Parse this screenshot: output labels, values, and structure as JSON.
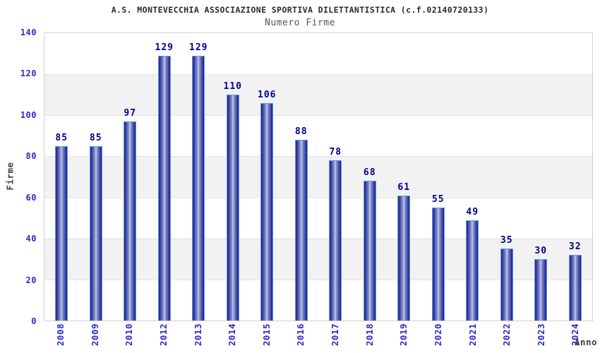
{
  "chart_data": {
    "type": "bar",
    "title": "A.S. MONTEVECCHIA ASSOCIAZIONE SPORTIVA DILETTANTISTICA (c.f.02140720133)",
    "subtitle": "Numero Firme",
    "xlabel": "Anno",
    "ylabel": "Firme",
    "categories": [
      "2008",
      "2009",
      "2010",
      "2012",
      "2013",
      "2014",
      "2015",
      "2016",
      "2017",
      "2018",
      "2019",
      "2020",
      "2021",
      "2022",
      "2023",
      "2024"
    ],
    "values": [
      85,
      85,
      97,
      129,
      129,
      110,
      106,
      88,
      78,
      68,
      61,
      55,
      49,
      35,
      30,
      32
    ],
    "ylim": [
      0,
      140
    ],
    "yticks": [
      0,
      20,
      40,
      60,
      80,
      100,
      120,
      140
    ],
    "grid": "horizontal-bands-alternating",
    "legend": "none"
  },
  "colors": {
    "bar_dark": "#20208c",
    "bar_mid": "#8e97d0",
    "bar_highlight": "#c9cfee",
    "bar_outline": "#5c9fe0",
    "value_label": "#00008b",
    "tick_label": "#2a2ac8",
    "axis_label": "#404040",
    "band_gray": "#f2f2f2",
    "plot_border": "#cfcfcf"
  }
}
